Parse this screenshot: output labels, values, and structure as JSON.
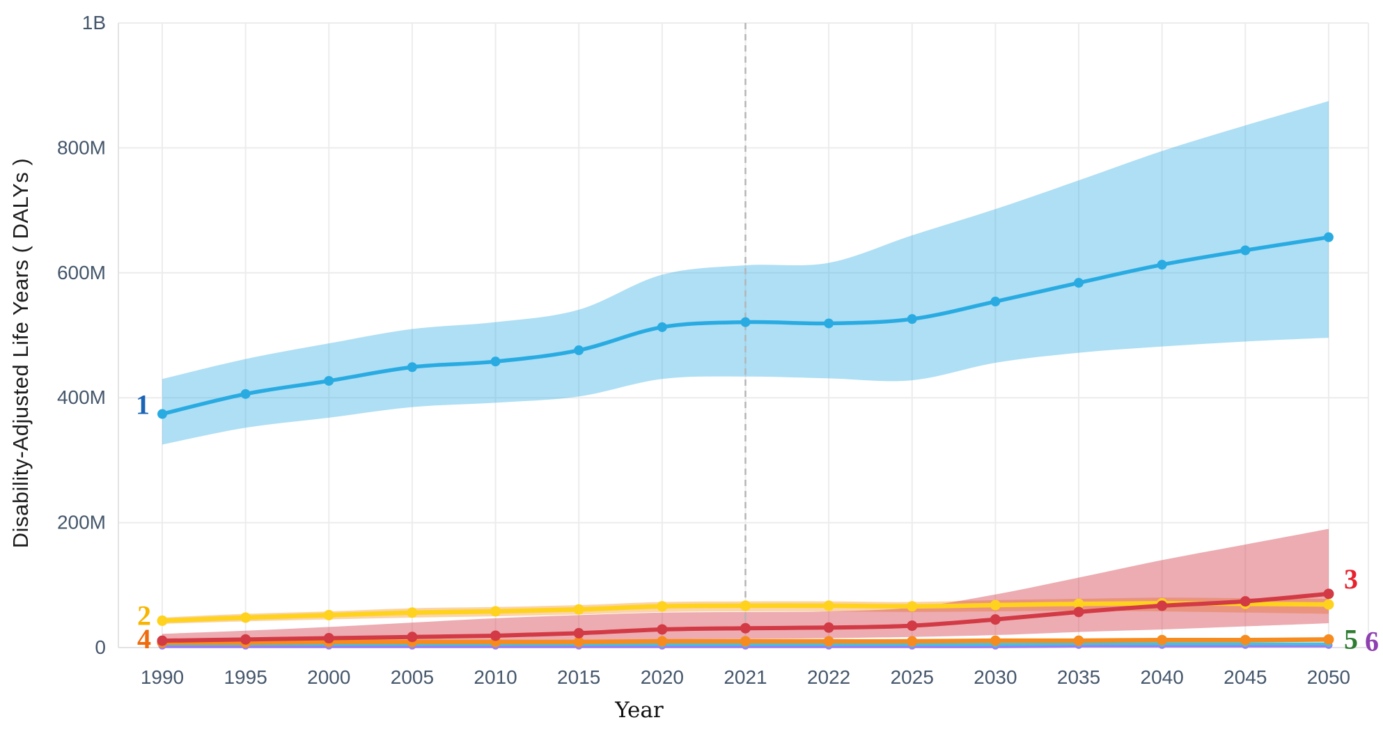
{
  "page": {
    "x_axis_title": "Year",
    "y_axis_title": "Disability-Adjusted Life Years ( DALYs )"
  },
  "colors": {
    "background": "#ffffff",
    "grid_line": "#ececec",
    "axis_border": "#e2e2e2",
    "tick_label": "#44566b",
    "forecast_divider": "#b5b5b5"
  },
  "chart_data": {
    "type": "line",
    "x_type": "category",
    "title": "",
    "xlabel": "Year",
    "ylabel": "Disability-Adjusted Life Years ( DALYs )",
    "grid": true,
    "legend_position": "none",
    "unit": "DALYs (values in millions)",
    "ylim": [
      0,
      1000
    ],
    "y_ticks": [
      {
        "value": 0,
        "label": "0"
      },
      {
        "value": 200,
        "label": "200M"
      },
      {
        "value": 400,
        "label": "400M"
      },
      {
        "value": 600,
        "label": "600M"
      },
      {
        "value": 800,
        "label": "800M"
      },
      {
        "value": 1000,
        "label": "1B"
      }
    ],
    "categories": [
      "1990",
      "1995",
      "2000",
      "2005",
      "2010",
      "2015",
      "2020",
      "2021",
      "2022",
      "2025",
      "2030",
      "2035",
      "2040",
      "2045",
      "2050"
    ],
    "forecast_divider_category": "2021",
    "series": [
      {
        "id": "6",
        "label": "6",
        "color": "#9b7bf5",
        "label_color": "#8e3fb0",
        "label_side": "right",
        "label_offset": [
          52,
          8
        ],
        "point_radius": 5.5,
        "line_width": 7,
        "values": [
          3,
          3,
          3,
          3,
          3,
          3,
          3,
          3,
          3,
          3,
          3,
          4,
          4,
          4,
          4
        ]
      },
      {
        "id": "5",
        "label": "5",
        "color": "#3fc3e0",
        "label_color": "#2e7d32",
        "label_side": "right",
        "label_offset": [
          22,
          7
        ],
        "point_radius": 4.5,
        "line_width": 4,
        "values": [
          5,
          5,
          5,
          5,
          5,
          5,
          5,
          5,
          5,
          5,
          5,
          6,
          6,
          6,
          6
        ]
      },
      {
        "id": "4",
        "label": "4",
        "color": "#f68b1f",
        "label_color": "#ee6c0e",
        "label_side": "left",
        "label_offset": [
          -16,
          8
        ],
        "point_radius": 7.5,
        "line_width": 6.5,
        "values": [
          8,
          8,
          9,
          9,
          9,
          9,
          10,
          10,
          10,
          10,
          11,
          11,
          12,
          12,
          13
        ]
      },
      {
        "id": "2",
        "label": "2",
        "color": "#ffd21e",
        "label_color": "#f7b500",
        "label_side": "left",
        "label_offset": [
          -16,
          6
        ],
        "point_radius": 7.5,
        "line_width": 6.5,
        "band_color": "rgba(246,160,60,0.45)",
        "values": [
          43,
          48,
          52,
          56,
          58,
          61,
          66,
          67,
          67,
          66,
          68,
          70,
          71,
          70,
          69
        ],
        "band_lower": [
          38,
          42,
          45,
          48,
          50,
          53,
          57,
          58,
          58,
          57,
          58,
          59,
          58,
          56,
          54
        ],
        "band_upper": [
          48,
          54,
          58,
          63,
          65,
          68,
          73,
          74,
          74,
          73,
          76,
          78,
          80,
          79,
          78
        ]
      },
      {
        "id": "3",
        "label": "3",
        "color": "#d23a45",
        "label_color": "#e8212e",
        "label_side": "right",
        "label_offset": [
          22,
          -8
        ],
        "point_radius": 7.5,
        "line_width": 6,
        "band_color": "rgba(210,58,69,0.42)",
        "values": [
          11,
          13,
          15,
          17,
          19,
          23,
          29,
          31,
          32,
          35,
          45,
          57,
          67,
          74,
          86
        ],
        "band_lower": [
          6,
          7,
          8,
          9,
          9,
          11,
          13,
          14,
          15,
          17,
          20,
          25,
          29,
          34,
          39
        ],
        "band_upper": [
          22,
          27,
          33,
          40,
          47,
          52,
          56,
          57,
          58,
          64,
          85,
          112,
          140,
          165,
          190
        ]
      },
      {
        "id": "1",
        "label": "1",
        "color": "#29abe2",
        "label_color": "#1a64b5",
        "label_side": "left",
        "label_offset": [
          -18,
          0
        ],
        "point_radius": 7,
        "line_width": 5.5,
        "band_color": "rgba(41,171,226,0.38)",
        "values": [
          374,
          406,
          427,
          449,
          458,
          476,
          513,
          521,
          519,
          526,
          554,
          584,
          613,
          636,
          657
        ],
        "band_lower": [
          325,
          352,
          368,
          385,
          392,
          402,
          430,
          434,
          431,
          428,
          456,
          472,
          482,
          490,
          496
        ],
        "band_upper": [
          430,
          462,
          487,
          510,
          521,
          541,
          597,
          612,
          616,
          660,
          702,
          748,
          795,
          836,
          875
        ]
      }
    ]
  }
}
